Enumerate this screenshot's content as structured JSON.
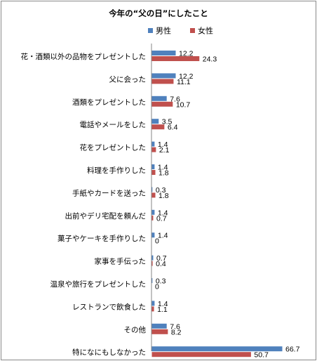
{
  "chart_data": {
    "type": "bar",
    "orientation": "horizontal",
    "title": "今年の“父の日”にしたこと",
    "legend_position": "top-right",
    "grid": false,
    "xlim": [
      0,
      70
    ],
    "categories": [
      "花・酒類以外の品物をプレゼントした",
      "父に会った",
      "酒類をプレゼントした",
      "電話やメールをした",
      "花をプレゼントした",
      "料理を手作りした",
      "手紙やカードを送った",
      "出前やデリ宅配を頼んだ",
      "菓子やケーキを手作りした",
      "家事を手伝った",
      "温泉や旅行をプレゼントした",
      "レストランで飲食した",
      "その他",
      "特になにもしなかった"
    ],
    "series": [
      {
        "name": "男性",
        "color": "#4f81bd",
        "values": [
          12.2,
          12.2,
          7.6,
          3.5,
          1.4,
          1.4,
          0.3,
          1.4,
          1.4,
          0.7,
          0.3,
          1.4,
          7.6,
          66.7
        ],
        "labels": [
          "12.2",
          "12.2",
          "7.6",
          "3.5",
          "1.4",
          "1.4",
          "0.3",
          "1.4",
          "1.4",
          "0.7",
          "0.3",
          "1.4",
          "7.6",
          "66.7"
        ]
      },
      {
        "name": "女性",
        "color": "#c0504d",
        "values": [
          24.3,
          11.1,
          10.7,
          6.4,
          2.1,
          1.8,
          1.8,
          0.7,
          0,
          0.4,
          0,
          1.1,
          8.2,
          50.7
        ],
        "labels": [
          "24.3",
          "11.1",
          "10.7",
          "6.4",
          "2.1",
          "1.8",
          "1.8",
          "0.7",
          "0",
          "0.4",
          "0",
          "1.1",
          "8.2",
          "50.7"
        ]
      }
    ]
  }
}
